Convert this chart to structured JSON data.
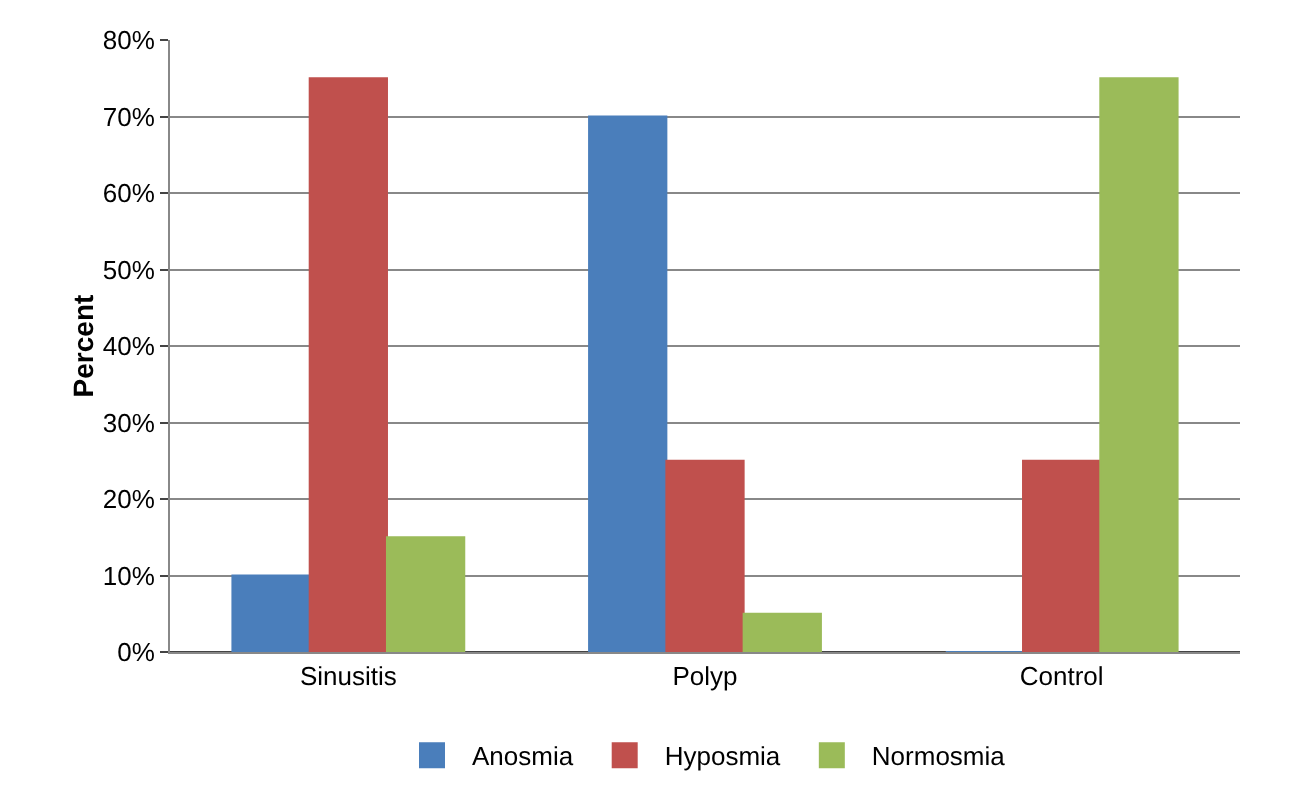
{
  "chart_data": {
    "type": "bar",
    "ylabel": "Percent",
    "categories": [
      "Sinusitis",
      "Polyp",
      "Control"
    ],
    "series": [
      {
        "name": "Anosmia",
        "color": "#4a7ebb",
        "values": [
          10,
          70,
          0
        ]
      },
      {
        "name": "Hyposmia",
        "color": "#c0504d",
        "values": [
          75,
          25,
          25
        ]
      },
      {
        "name": "Normosmia",
        "color": "#9bbb59",
        "values": [
          15,
          5,
          75
        ]
      }
    ],
    "ylim": [
      0,
      80
    ],
    "yticks": [
      {
        "value": 0,
        "label": "0%"
      },
      {
        "value": 10,
        "label": "10%"
      },
      {
        "value": 20,
        "label": "20%"
      },
      {
        "value": 30,
        "label": "30%"
      },
      {
        "value": 40,
        "label": "40%"
      },
      {
        "value": 50,
        "label": "50%"
      },
      {
        "value": 60,
        "label": "60%"
      },
      {
        "value": 70,
        "label": "70%"
      },
      {
        "value": 80,
        "label": "80%"
      }
    ],
    "grid": "y",
    "legend": "bottom"
  }
}
